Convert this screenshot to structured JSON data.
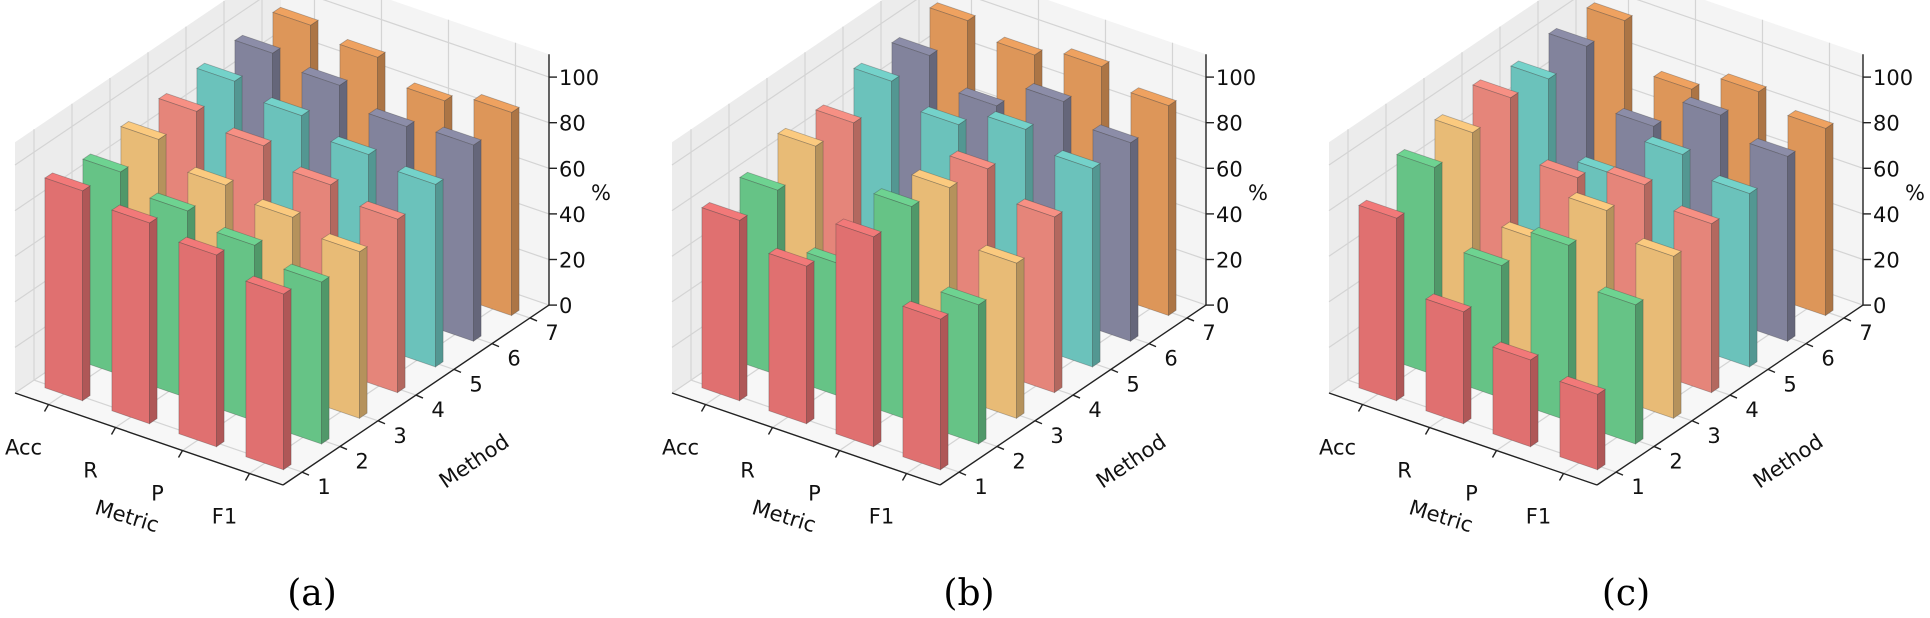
{
  "chart_data": [
    {
      "type": "bar3d",
      "caption": "(a)",
      "xlabel": "Metric",
      "ylabel": "Method",
      "zlabel": "%",
      "categories": [
        "Acc",
        "R",
        "P",
        "F1"
      ],
      "methods": [
        "1",
        "2",
        "3",
        "4",
        "5",
        "6",
        "7"
      ],
      "zticks": [
        0,
        20,
        40,
        60,
        80,
        100
      ],
      "zlim": [
        0,
        100
      ],
      "series": [
        {
          "name": "1",
          "values": [
            92,
            88,
            84,
            77
          ]
        },
        {
          "name": "2",
          "values": [
            89,
            82,
            77,
            71
          ]
        },
        {
          "name": "3",
          "values": [
            92,
            82,
            78,
            73
          ]
        },
        {
          "name": "4",
          "values": [
            93,
            88,
            81,
            76
          ]
        },
        {
          "name": "5",
          "values": [
            95,
            90,
            83,
            80
          ]
        },
        {
          "name": "6",
          "values": [
            96,
            92,
            84,
            86
          ]
        },
        {
          "name": "7",
          "values": [
            97,
            93,
            84,
            89
          ]
        }
      ]
    },
    {
      "type": "bar3d",
      "caption": "(b)",
      "xlabel": "Metric",
      "ylabel": "Method",
      "zlabel": "%",
      "categories": [
        "Acc",
        "R",
        "P",
        "F1"
      ],
      "methods": [
        "1",
        "2",
        "3",
        "4",
        "5",
        "6",
        "7"
      ],
      "zticks": [
        0,
        20,
        40,
        60,
        80,
        100
      ],
      "zlim": [
        0,
        100
      ],
      "series": [
        {
          "name": "1",
          "values": [
            79,
            69,
            92,
            66
          ]
        },
        {
          "name": "2",
          "values": [
            81,
            58,
            94,
            61
          ]
        },
        {
          "name": "3",
          "values": [
            89,
            47,
            91,
            68
          ]
        },
        {
          "name": "4",
          "values": [
            88,
            55,
            88,
            77
          ]
        },
        {
          "name": "5",
          "values": [
            95,
            86,
            94,
            87
          ]
        },
        {
          "name": "6",
          "values": [
            95,
            83,
            95,
            87
          ]
        },
        {
          "name": "7",
          "values": [
            99,
            94,
            99,
            92
          ]
        }
      ]
    },
    {
      "type": "bar3d",
      "caption": "(c)",
      "xlabel": "Metric",
      "ylabel": "Method",
      "zlabel": "%",
      "categories": [
        "Acc",
        "R",
        "P",
        "F1"
      ],
      "methods": [
        "1",
        "2",
        "3",
        "4",
        "5",
        "6",
        "7"
      ],
      "zticks": [
        0,
        20,
        40,
        60,
        80,
        100
      ],
      "zlim": [
        0,
        100
      ],
      "series": [
        {
          "name": "1",
          "values": [
            80,
            49,
            38,
            33
          ]
        },
        {
          "name": "2",
          "values": [
            91,
            58,
            77,
            61
          ]
        },
        {
          "name": "3",
          "values": [
            95,
            58,
            81,
            71
          ]
        },
        {
          "name": "4",
          "values": [
            99,
            74,
            81,
            74
          ]
        },
        {
          "name": "5",
          "values": [
            96,
            64,
            83,
            76
          ]
        },
        {
          "name": "6",
          "values": [
            99,
            74,
            89,
            81
          ]
        },
        {
          "name": "7",
          "values": [
            99,
            79,
            88,
            82
          ]
        }
      ]
    }
  ],
  "colors": [
    "#e07070",
    "#66c386",
    "#e8bb76",
    "#e5857a",
    "#6bc2bb",
    "#82839c",
    "#dd9659"
  ]
}
